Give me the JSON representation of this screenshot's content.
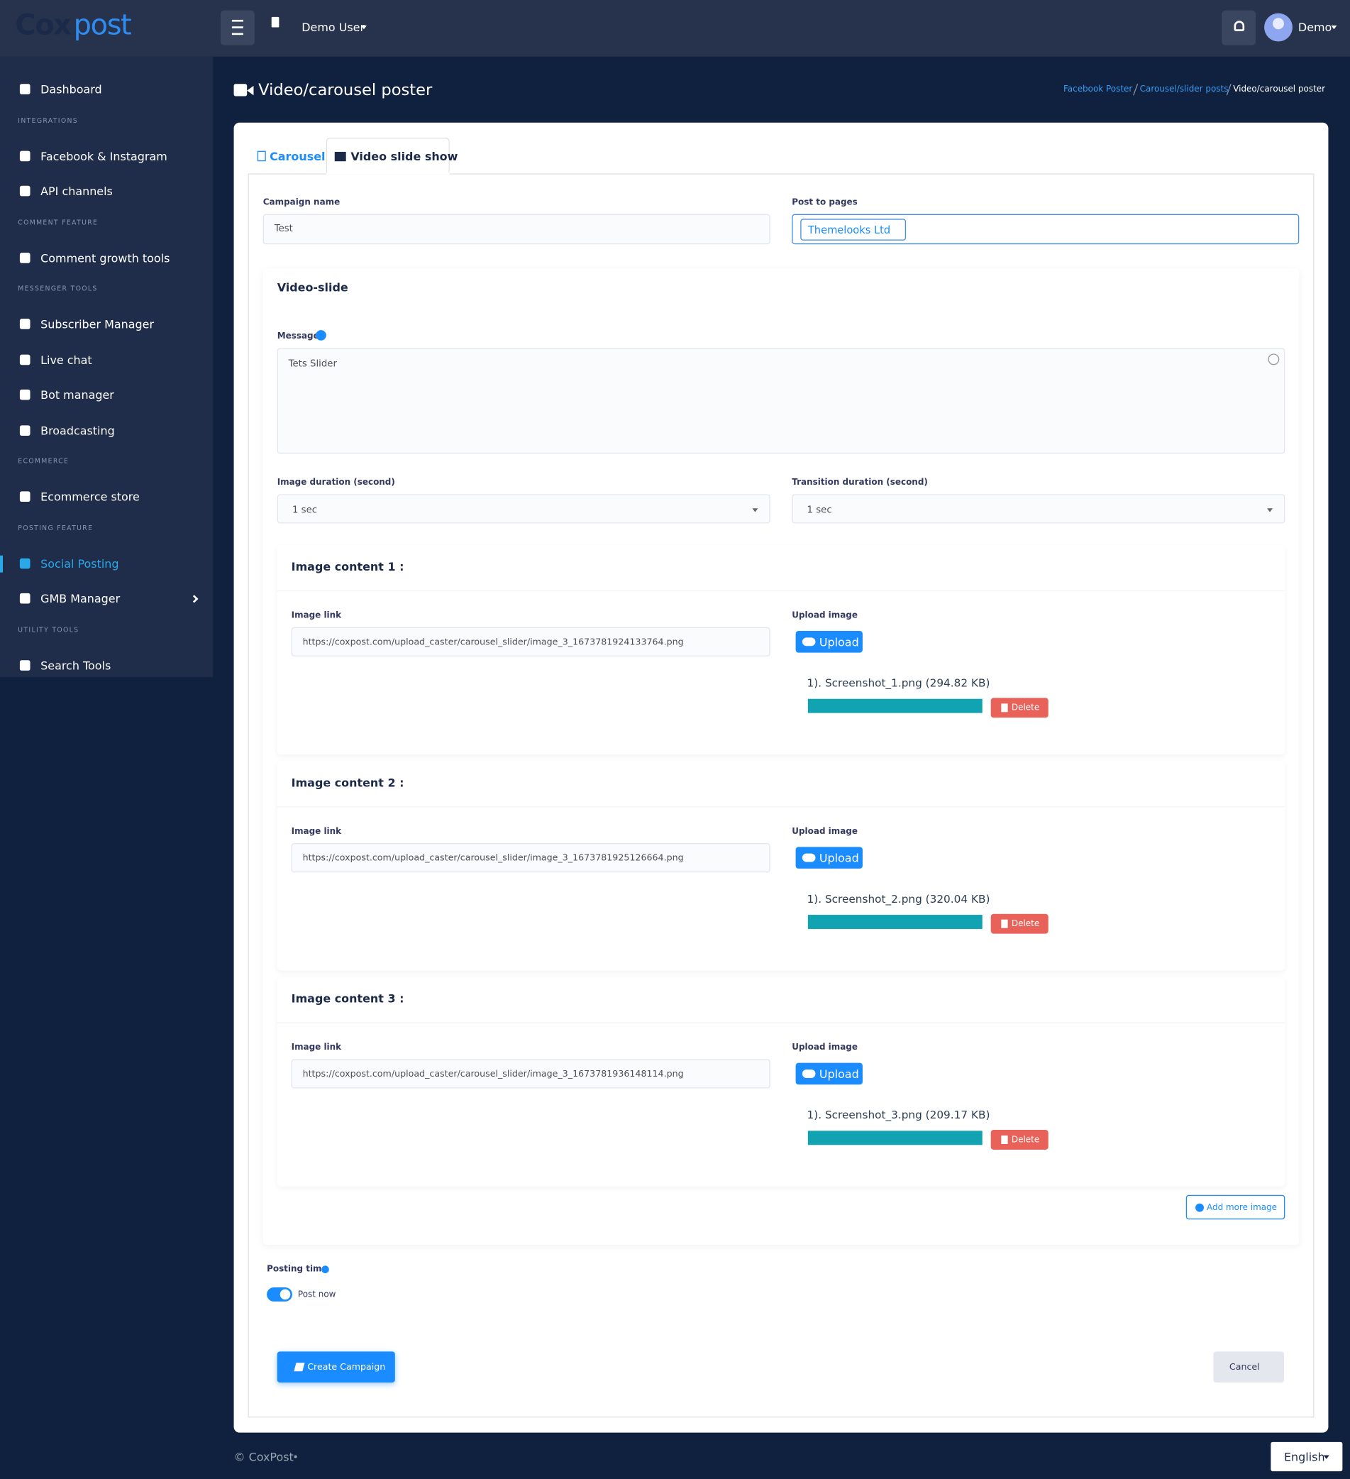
{
  "header": {
    "logo": {
      "part1": "Cox",
      "part2": "post"
    },
    "user_menu": "Demo User",
    "profile": "Demo"
  },
  "sidebar": [
    {
      "items": [
        "Dashboard"
      ]
    },
    {
      "heading": "INTEGRATIONS",
      "items": [
        "Facebook & Instagram",
        "API channels"
      ]
    },
    {
      "heading": "COMMENT FEATURE",
      "items": [
        "Comment growth tools"
      ]
    },
    {
      "heading": "MESSENGER TOOLS",
      "items": [
        "Subscriber Manager",
        "Live chat",
        "Bot manager",
        "Broadcasting"
      ]
    },
    {
      "heading": "ECOMMERCE",
      "items": [
        "Ecommerce store"
      ]
    },
    {
      "heading": "POSTING FEATURE",
      "items": [
        "Social Posting",
        "GMB Manager"
      ]
    },
    {
      "heading": "UTILITY TOOLS",
      "items": [
        "Search Tools"
      ]
    }
  ],
  "page_title": "Video/carousel poster",
  "breadcrumb": [
    "Facebook Poster",
    "Carousel/slider posts",
    "Video/carousel poster"
  ],
  "tabs": [
    "Carousel",
    "Video slide show"
  ],
  "form": {
    "campaign_name": {
      "label": "Campaign name",
      "value": "Test"
    },
    "post_to_pages": {
      "label": "Post to pages",
      "tag": "Themelooks Ltd"
    },
    "section_title": "Video-slide",
    "message": {
      "label": "Message",
      "value": "Tets Slider"
    },
    "image_duration": {
      "label": "Image duration (second)",
      "value": "1 sec"
    },
    "transition_duration": {
      "label": "Transition duration (second)",
      "value": "1 sec"
    },
    "image_contents": [
      {
        "title": "Image content 1 :",
        "link_label": "Image link",
        "link": "https://coxpost.com/upload_caster/carousel_slider/image_3_1673781924133764.png",
        "upload_label": "Upload image",
        "upload_button": "Upload",
        "file": "1). Screenshot_1.png (294.82 KB)",
        "delete": "Delete"
      },
      {
        "title": "Image content 2 :",
        "link_label": "Image link",
        "link": "https://coxpost.com/upload_caster/carousel_slider/image_3_1673781925126664.png",
        "upload_label": "Upload image",
        "upload_button": "Upload",
        "file": "1). Screenshot_2.png (320.04 KB)",
        "delete": "Delete"
      },
      {
        "title": "Image content 3 :",
        "link_label": "Image link",
        "link": "https://coxpost.com/upload_caster/carousel_slider/image_3_1673781936148114.png",
        "upload_label": "Upload image",
        "upload_button": "Upload",
        "file": "1). Screenshot_3.png (209.17 KB)",
        "delete": "Delete"
      }
    ],
    "add_more": "Add more image",
    "posting_time": {
      "label": "Posting time",
      "toggle": "Post now"
    },
    "create_button": "Create Campaign",
    "cancel_button": "Cancel"
  },
  "footer": {
    "copyright": "© CoxPost",
    "language": "English"
  }
}
